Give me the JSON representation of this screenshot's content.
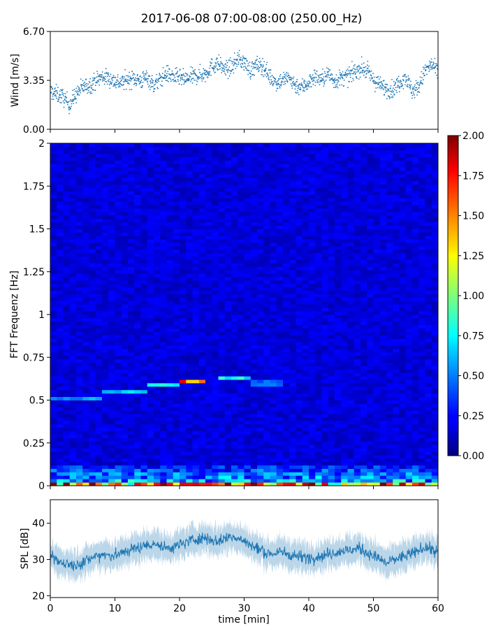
{
  "figure": {
    "title": "2017-06-08 07:00-08:00 (250.00_Hz)"
  },
  "colors": {
    "series": "#1f77b4",
    "colormap": "jet"
  },
  "chart_data": [
    {
      "id": "wind",
      "type": "scatter",
      "ylabel": "Wind [m/s]",
      "xlim": [
        0,
        60
      ],
      "ylim": [
        0,
        6.7
      ],
      "yticks": [
        0,
        3.35,
        6.7
      ],
      "ytick_labels": [
        "0.00",
        "3.35",
        "6.70"
      ],
      "grid": false,
      "x": [
        0,
        1,
        2,
        3,
        4,
        5,
        6,
        7,
        8,
        9,
        10,
        11,
        12,
        13,
        14,
        15,
        16,
        17,
        18,
        19,
        20,
        21,
        22,
        23,
        24,
        25,
        26,
        27,
        28,
        29,
        30,
        31,
        32,
        33,
        34,
        35,
        36,
        37,
        38,
        39,
        40,
        41,
        42,
        43,
        44,
        45,
        46,
        47,
        48,
        49,
        50,
        51,
        52,
        53,
        54,
        55,
        56,
        57,
        58,
        59,
        60
      ],
      "y": [
        2.6,
        2.4,
        2.2,
        1.7,
        2.4,
        2.9,
        3.0,
        3.3,
        3.6,
        3.5,
        3.3,
        3.2,
        3.4,
        3.5,
        3.3,
        3.6,
        3.0,
        3.4,
        3.8,
        3.6,
        3.5,
        3.4,
        3.6,
        3.7,
        3.8,
        4.3,
        4.5,
        4.1,
        4.2,
        4.8,
        4.6,
        4.0,
        4.4,
        4.3,
        3.6,
        3.2,
        3.4,
        3.5,
        3.0,
        2.9,
        3.2,
        3.6,
        3.4,
        3.8,
        3.3,
        3.5,
        3.6,
        3.9,
        4.2,
        4.0,
        3.4,
        3.0,
        2.8,
        2.7,
        3.2,
        3.6,
        2.6,
        2.9,
        4.0,
        4.4,
        3.9
      ]
    },
    {
      "id": "spectrogram",
      "type": "heatmap",
      "ylabel": "FFT Frequenz [Hz]",
      "xlim": [
        0,
        60
      ],
      "ylim": [
        0,
        2
      ],
      "yticks": [
        0,
        0.25,
        0.5,
        0.75,
        1,
        1.25,
        1.5,
        1.75,
        2
      ],
      "ytick_labels": [
        "0",
        "0.25",
        "0.5",
        "0.75",
        "1",
        "1.25",
        "1.5",
        "1.75",
        "2"
      ],
      "colorbar": {
        "range": [
          0,
          2
        ],
        "ticks": [
          0,
          0.25,
          0.5,
          0.75,
          1,
          1.25,
          1.5,
          1.75,
          2
        ],
        "tick_labels": [
          "0.00",
          "0.25",
          "0.50",
          "0.75",
          "1.00",
          "1.25",
          "1.50",
          "1.75",
          "2.00"
        ]
      },
      "background_level": 0.18,
      "low_frequency_band": {
        "freq_max": 0.12,
        "level": 0.7
      },
      "features": [
        {
          "x_start": 0,
          "x_end": 8,
          "freq": 0.51,
          "level": 0.55
        },
        {
          "x_start": 8,
          "x_end": 15,
          "freq": 0.555,
          "level": 0.65
        },
        {
          "x_start": 15,
          "x_end": 20,
          "freq": 0.585,
          "level": 0.7
        },
        {
          "x_start": 20,
          "x_end": 24,
          "freq": 0.615,
          "level": 1.5
        },
        {
          "x_start": 26,
          "x_end": 31,
          "freq": 0.635,
          "level": 0.75
        },
        {
          "x_start": 31,
          "x_end": 36,
          "freq": 0.6,
          "level": 0.45
        }
      ]
    },
    {
      "id": "spl",
      "type": "line",
      "ylabel": "SPL [dB]",
      "xlabel": "time [min]",
      "xlim": [
        0,
        60
      ],
      "ylim": [
        19.5,
        46.5
      ],
      "xticks": [
        0,
        10,
        20,
        30,
        40,
        50,
        60
      ],
      "xtick_labels": [
        "0",
        "10",
        "20",
        "30",
        "40",
        "50",
        "60"
      ],
      "yticks": [
        20,
        30,
        40
      ],
      "ytick_labels": [
        "20",
        "30",
        "40"
      ],
      "grid": false,
      "x": [
        0,
        2,
        4,
        6,
        8,
        10,
        12,
        14,
        16,
        18,
        20,
        22,
        24,
        26,
        28,
        30,
        32,
        34,
        36,
        38,
        40,
        42,
        44,
        46,
        48,
        50,
        52,
        54,
        56,
        58,
        60
      ],
      "y": [
        30.5,
        29.0,
        28.5,
        30.0,
        31.5,
        31.0,
        32.5,
        33.5,
        34.5,
        33.0,
        34.0,
        35.5,
        36.0,
        35.0,
        36.5,
        35.0,
        33.0,
        31.5,
        32.0,
        31.0,
        30.5,
        31.0,
        32.0,
        32.5,
        33.0,
        31.0,
        29.0,
        30.5,
        31.5,
        33.5,
        32.0
      ]
    }
  ]
}
